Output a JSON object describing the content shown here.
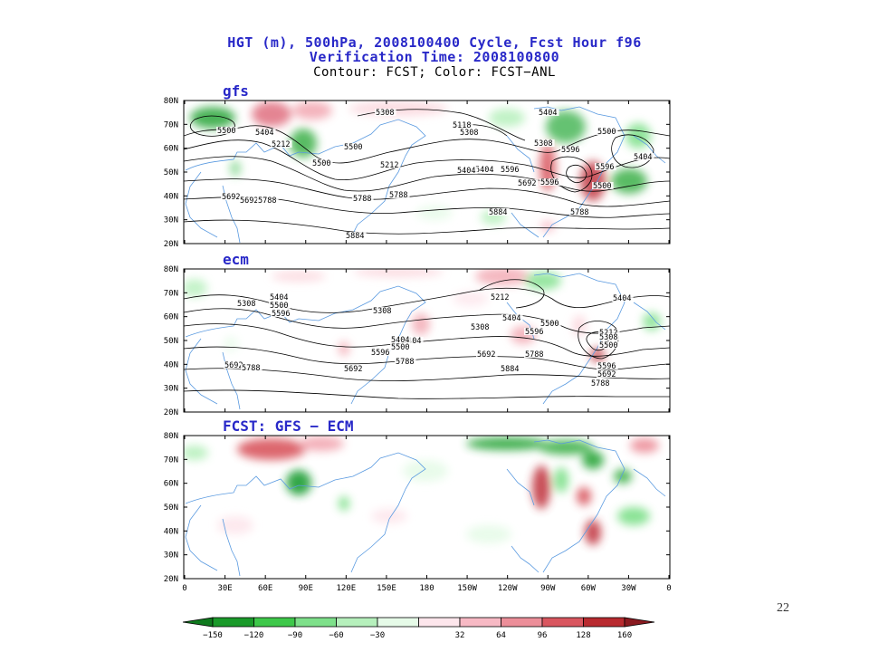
{
  "title": {
    "line1": "HGT (m), 500hPa, 2008100400 Cycle, Fcst Hour f96",
    "line2": "Verification Time: 2008100800",
    "line3": "Contour: FCST; Color: FCST−ANL"
  },
  "panels": {
    "gfs": {
      "label": "gfs",
      "contour_labels": [
        "5308",
        "5118",
        "5404",
        "5500",
        "5404",
        "5500",
        "5596",
        "5212",
        "5308",
        "5404",
        "5596",
        "5500",
        "5308",
        "5404",
        "5500",
        "5212",
        "5596",
        "5692",
        "5596",
        "5404",
        "5788",
        "5500",
        "5692",
        "5788",
        "5692",
        "5884",
        "5788",
        "5884",
        "5788"
      ]
    },
    "ecm": {
      "label": "ecm",
      "contour_labels": [
        "5404",
        "5308",
        "5500",
        "5596",
        "5212",
        "5404",
        "5308",
        "5404",
        "5308",
        "5500",
        "5596",
        "5404",
        "5500",
        "5596",
        "5692",
        "5692",
        "5788",
        "5788",
        "5884",
        "5404",
        "5212",
        "5308",
        "5500",
        "5596",
        "5692",
        "5788",
        "5692",
        "5788"
      ]
    },
    "diff": {
      "label": "FCST: GFS − ECM"
    }
  },
  "axes": {
    "lat_ticks": [
      "80N",
      "70N",
      "60N",
      "50N",
      "40N",
      "30N",
      "20N"
    ],
    "lon_ticks": [
      "0",
      "30E",
      "60E",
      "90E",
      "120E",
      "150E",
      "180",
      "150W",
      "120W",
      "90W",
      "60W",
      "30W",
      "0"
    ]
  },
  "colorbar": {
    "labels": [
      "−150",
      "−120",
      "−90",
      "−60",
      "−30",
      "32",
      "64",
      "96",
      "128",
      "160"
    ],
    "colors": [
      "#1a9a2a",
      "#3ec84a",
      "#7ee08a",
      "#b6f0bc",
      "#e6fbe8",
      "#fde6ec",
      "#f7b9c4",
      "#ec8e99",
      "#d9565f",
      "#b82a2f"
    ],
    "end_left": "#0f7a1e",
    "end_right": "#8a1a20"
  },
  "page_number": "22",
  "colors": {
    "title_blue": "#2828c8",
    "coast": "#5a9ae0"
  }
}
